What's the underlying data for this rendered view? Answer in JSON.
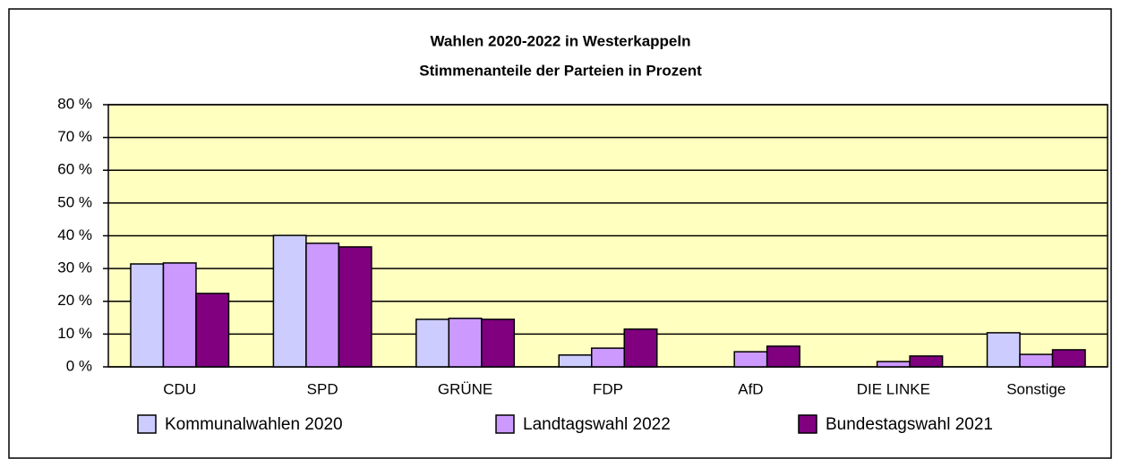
{
  "chart_data": {
    "type": "bar",
    "title": "Wahlen 2020-2022 in Westerkappeln",
    "subtitle": "Stimmenanteile der Parteien in Prozent",
    "categories": [
      "CDU",
      "SPD",
      "GRÜNE",
      "FDP",
      "AfD",
      "DIE LINKE",
      "Sonstige"
    ],
    "series": [
      {
        "name": "Kommunalwahlen 2020",
        "color": "#ccccff",
        "values": [
          31.4,
          40.1,
          14.5,
          3.6,
          null,
          null,
          10.4
        ]
      },
      {
        "name": "Landtagswahl 2022",
        "color": "#cc99ff",
        "values": [
          31.7,
          37.7,
          14.8,
          5.7,
          4.6,
          1.6,
          3.8
        ]
      },
      {
        "name": "Bundestagswahl 2021",
        "color": "#800080",
        "values": [
          22.4,
          36.6,
          14.5,
          11.5,
          6.3,
          3.3,
          5.2
        ]
      }
    ],
    "ylim": [
      0,
      80
    ],
    "yticks": [
      {
        "value": 0,
        "label": "0 %"
      },
      {
        "value": 10,
        "label": "10 %"
      },
      {
        "value": 20,
        "label": "20 %"
      },
      {
        "value": 30,
        "label": "30 %"
      },
      {
        "value": 40,
        "label": "40 %"
      },
      {
        "value": 50,
        "label": "50 %"
      },
      {
        "value": 60,
        "label": "60 %"
      },
      {
        "value": 70,
        "label": "70 %"
      },
      {
        "value": 80,
        "label": "80 %"
      }
    ],
    "grid": true,
    "plot_background": "#ffffc0",
    "legend": "bottom"
  }
}
